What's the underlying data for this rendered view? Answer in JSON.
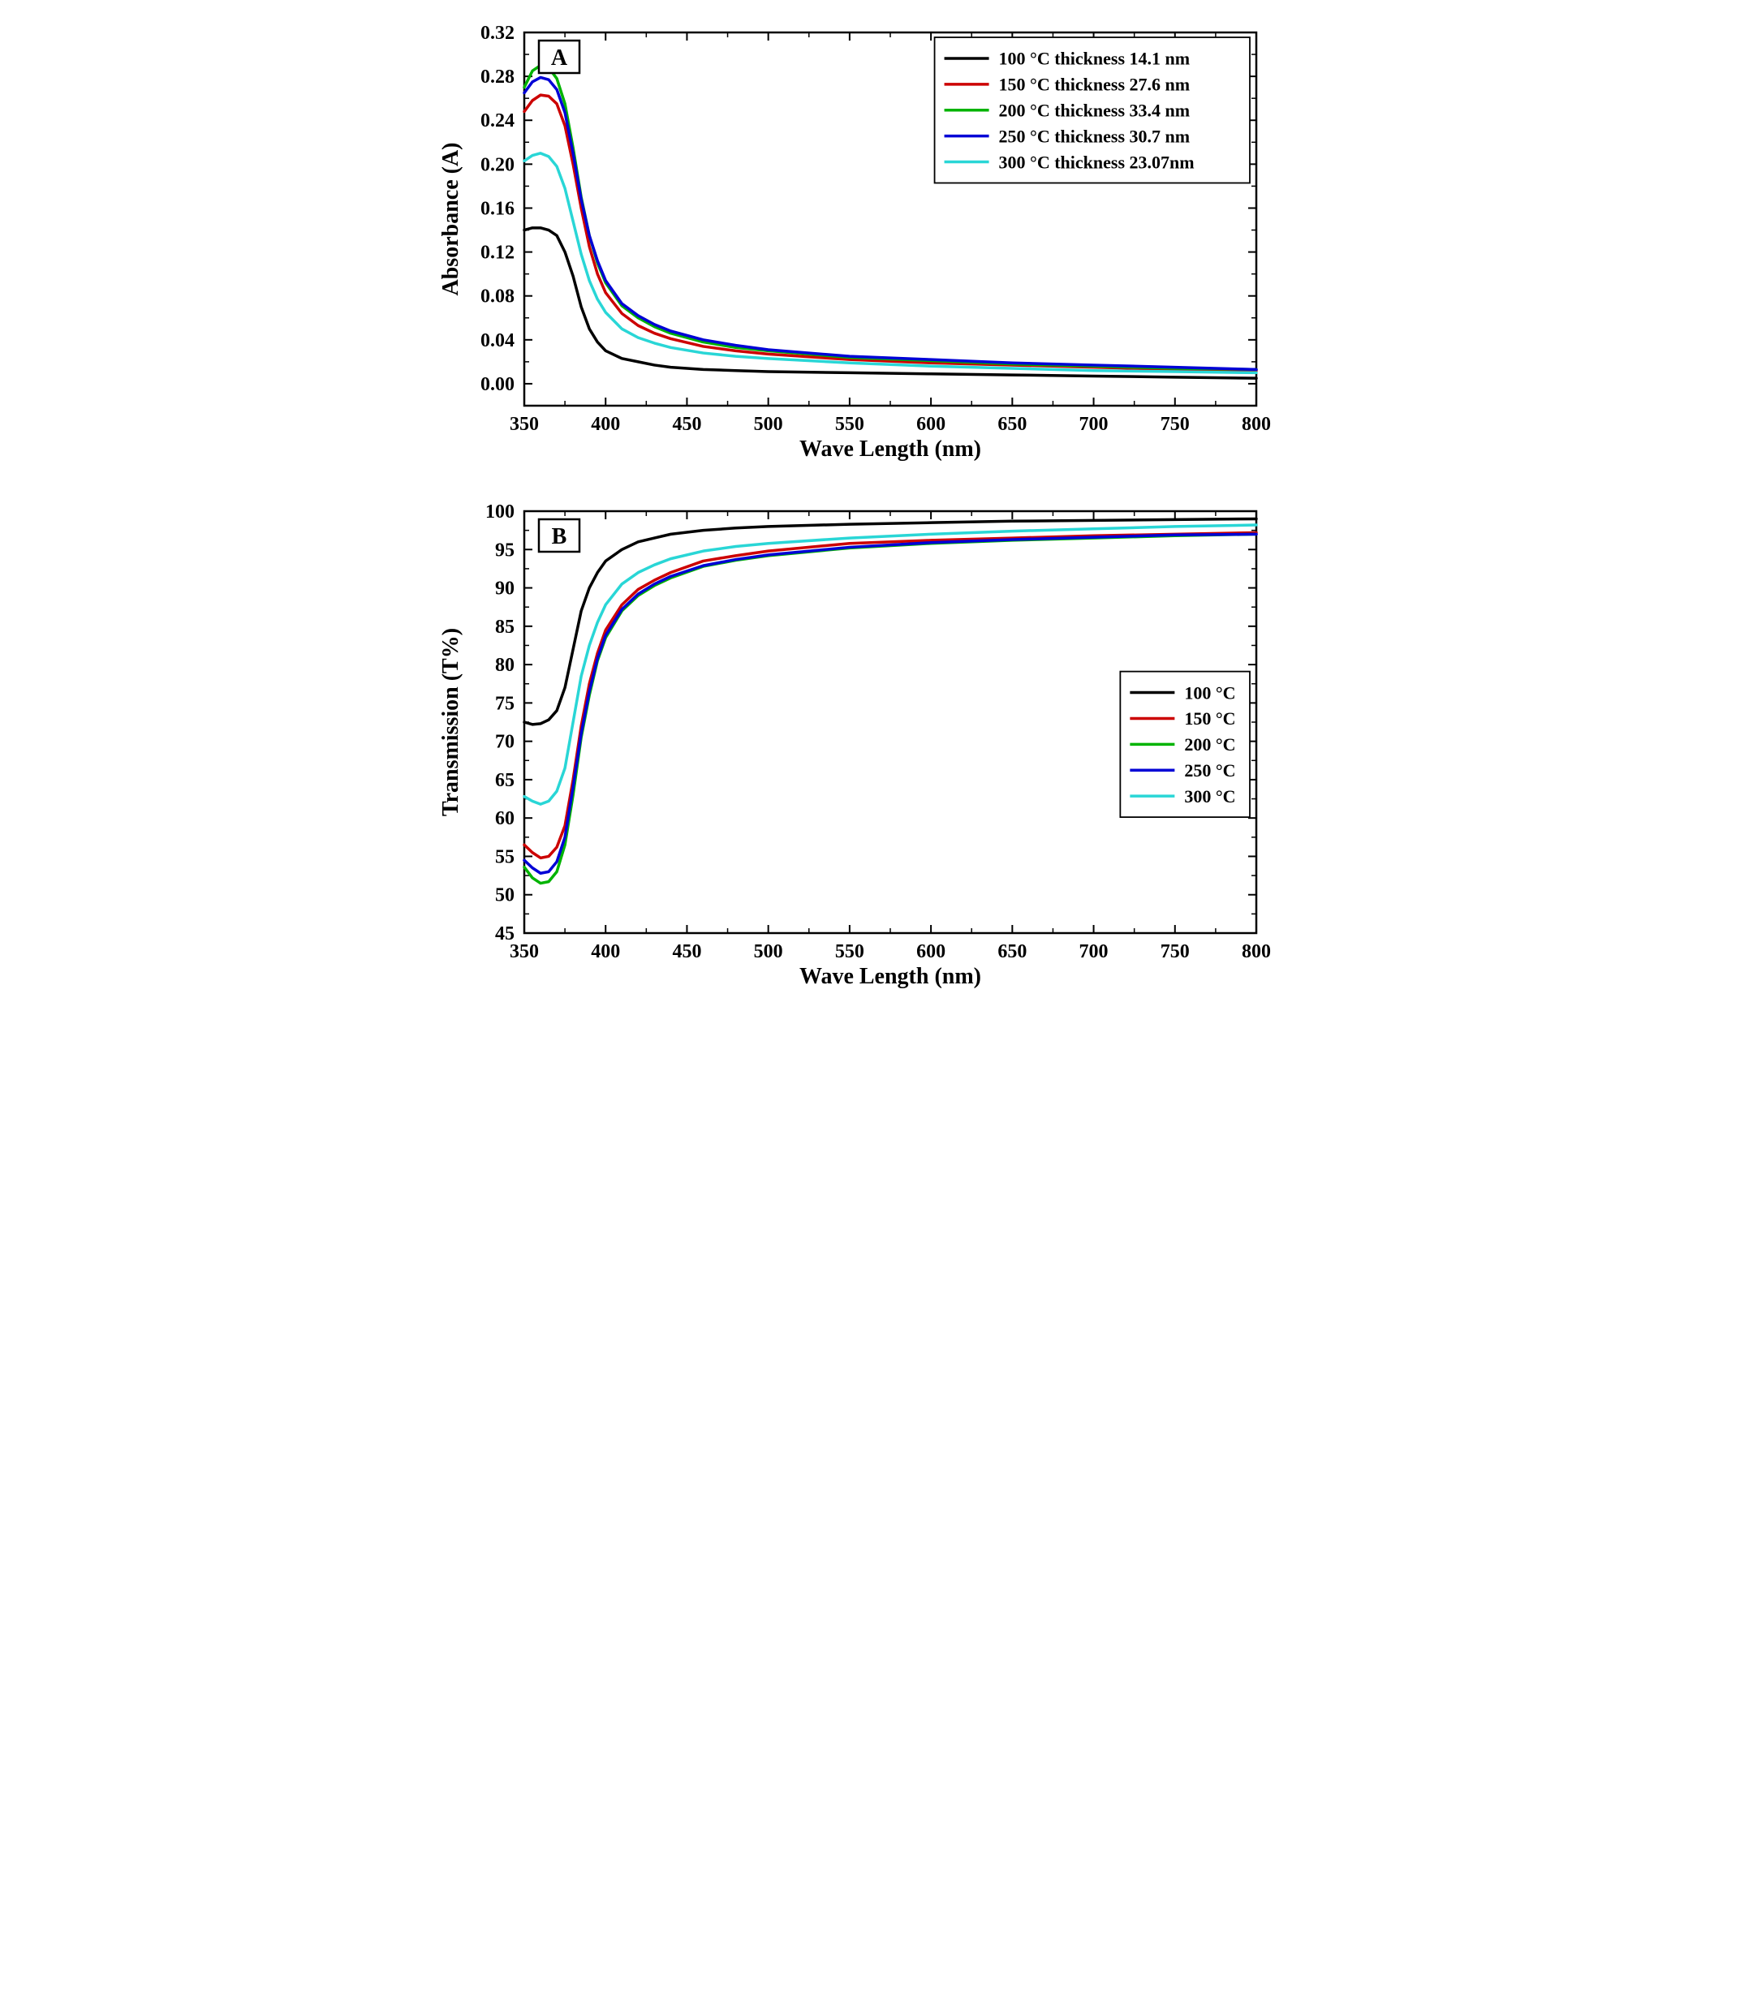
{
  "global": {
    "background_color": "#ffffff",
    "axis_color": "#000000",
    "tick_font_size": 24,
    "label_font_size": 28,
    "font_family": "Times New Roman, Times, serif",
    "line_width": 3.5
  },
  "chartA": {
    "panel_label": "A",
    "panel_box": {
      "stroke": "#000000",
      "fill": "#ffffff"
    },
    "xlabel": "Wave Length (nm)",
    "ylabel": "Absorbance (A)",
    "xlim": [
      350,
      800
    ],
    "ylim": [
      -0.02,
      0.32
    ],
    "xticks": [
      350,
      400,
      450,
      500,
      550,
      600,
      650,
      700,
      750,
      800
    ],
    "yticks": [
      0.0,
      0.04,
      0.08,
      0.12,
      0.16,
      0.2,
      0.24,
      0.28,
      0.32
    ],
    "ytick_labels": [
      "0.00",
      "0.04",
      "0.08",
      "0.12",
      "0.16",
      "0.20",
      "0.24",
      "0.28",
      "0.32"
    ],
    "legend": {
      "position": "upper-right",
      "border": "#000000",
      "font_size": 22,
      "items": [
        {
          "color": "#000000",
          "label": "100 °C  thickness  14.1 nm"
        },
        {
          "color": "#cc0000",
          "label": "150 °C  thickness  27.6 nm"
        },
        {
          "color": "#00b300",
          "label": "200 °C  thickness  33.4 nm"
        },
        {
          "color": "#0000d6",
          "label": "250 °C  thickness  30.7 nm"
        },
        {
          "color": "#29d6d6",
          "label": "300 °C  thickness  23.07nm"
        }
      ]
    },
    "series": [
      {
        "name": "100C",
        "color": "#000000",
        "x": [
          350,
          355,
          360,
          365,
          370,
          375,
          380,
          385,
          390,
          395,
          400,
          410,
          420,
          430,
          440,
          460,
          480,
          500,
          550,
          600,
          650,
          700,
          750,
          800
        ],
        "y": [
          0.14,
          0.142,
          0.142,
          0.14,
          0.135,
          0.12,
          0.098,
          0.07,
          0.05,
          0.038,
          0.03,
          0.023,
          0.02,
          0.017,
          0.015,
          0.013,
          0.012,
          0.011,
          0.01,
          0.009,
          0.008,
          0.007,
          0.006,
          0.005
        ]
      },
      {
        "name": "150C",
        "color": "#cc0000",
        "x": [
          350,
          355,
          360,
          365,
          370,
          375,
          380,
          385,
          390,
          395,
          400,
          410,
          420,
          430,
          440,
          460,
          480,
          500,
          550,
          600,
          650,
          700,
          750,
          800
        ],
        "y": [
          0.248,
          0.258,
          0.263,
          0.262,
          0.255,
          0.235,
          0.2,
          0.16,
          0.125,
          0.1,
          0.083,
          0.064,
          0.053,
          0.046,
          0.041,
          0.034,
          0.03,
          0.027,
          0.022,
          0.019,
          0.017,
          0.015,
          0.013,
          0.012
        ]
      },
      {
        "name": "200C",
        "color": "#00b300",
        "x": [
          350,
          355,
          360,
          365,
          370,
          375,
          380,
          385,
          390,
          395,
          400,
          410,
          420,
          430,
          440,
          460,
          480,
          500,
          550,
          600,
          650,
          700,
          750,
          800
        ],
        "y": [
          0.27,
          0.285,
          0.29,
          0.288,
          0.278,
          0.255,
          0.215,
          0.17,
          0.135,
          0.11,
          0.092,
          0.071,
          0.06,
          0.052,
          0.046,
          0.038,
          0.033,
          0.03,
          0.024,
          0.021,
          0.018,
          0.016,
          0.014,
          0.013
        ]
      },
      {
        "name": "250C",
        "color": "#0000d6",
        "x": [
          350,
          355,
          360,
          365,
          370,
          375,
          380,
          385,
          390,
          395,
          400,
          410,
          420,
          430,
          440,
          460,
          480,
          500,
          550,
          600,
          650,
          700,
          750,
          800
        ],
        "y": [
          0.265,
          0.275,
          0.279,
          0.277,
          0.268,
          0.247,
          0.21,
          0.168,
          0.135,
          0.112,
          0.094,
          0.073,
          0.062,
          0.054,
          0.048,
          0.04,
          0.035,
          0.031,
          0.025,
          0.022,
          0.019,
          0.017,
          0.015,
          0.013
        ]
      },
      {
        "name": "300C",
        "color": "#29d6d6",
        "x": [
          350,
          355,
          360,
          365,
          370,
          375,
          380,
          385,
          390,
          395,
          400,
          410,
          420,
          430,
          440,
          460,
          480,
          500,
          550,
          600,
          650,
          700,
          750,
          800
        ],
        "y": [
          0.203,
          0.208,
          0.21,
          0.207,
          0.198,
          0.178,
          0.148,
          0.118,
          0.094,
          0.077,
          0.065,
          0.05,
          0.042,
          0.037,
          0.033,
          0.028,
          0.025,
          0.023,
          0.019,
          0.016,
          0.014,
          0.012,
          0.011,
          0.01
        ]
      }
    ]
  },
  "chartB": {
    "panel_label": "B",
    "panel_box": {
      "stroke": "#000000",
      "fill": "#ffffff"
    },
    "xlabel": "Wave Length (nm)",
    "ylabel": "Transmission (T%)",
    "xlim": [
      350,
      800
    ],
    "ylim": [
      45,
      100
    ],
    "xticks": [
      350,
      400,
      450,
      500,
      550,
      600,
      650,
      700,
      750,
      800
    ],
    "yticks": [
      45,
      50,
      55,
      60,
      65,
      70,
      75,
      80,
      85,
      90,
      95,
      100
    ],
    "legend": {
      "position": "right-middle",
      "border": "#000000",
      "font_size": 22,
      "items": [
        {
          "color": "#000000",
          "label": "100 °C"
        },
        {
          "color": "#cc0000",
          "label": "150 °C"
        },
        {
          "color": "#00b300",
          "label": "200 °C"
        },
        {
          "color": "#0000d6",
          "label": "250 °C"
        },
        {
          "color": "#29d6d6",
          "label": "300 °C"
        }
      ]
    },
    "series": [
      {
        "name": "100C",
        "color": "#000000",
        "x": [
          350,
          355,
          360,
          365,
          370,
          375,
          380,
          385,
          390,
          395,
          400,
          410,
          420,
          430,
          440,
          460,
          480,
          500,
          550,
          600,
          650,
          700,
          750,
          800
        ],
        "y": [
          72.5,
          72.2,
          72.3,
          72.8,
          74.0,
          77.0,
          82.0,
          87.0,
          90.0,
          92.0,
          93.5,
          95.0,
          96.0,
          96.5,
          97.0,
          97.5,
          97.8,
          98.0,
          98.3,
          98.5,
          98.7,
          98.8,
          98.9,
          99.0
        ]
      },
      {
        "name": "150C",
        "color": "#cc0000",
        "x": [
          350,
          355,
          360,
          365,
          370,
          375,
          380,
          385,
          390,
          395,
          400,
          410,
          420,
          430,
          440,
          460,
          480,
          500,
          550,
          600,
          650,
          700,
          750,
          800
        ],
        "y": [
          56.5,
          55.5,
          54.8,
          55.0,
          56.2,
          59.0,
          65.0,
          72.0,
          77.5,
          81.5,
          84.5,
          87.8,
          89.8,
          91.0,
          92.0,
          93.5,
          94.2,
          94.8,
          95.8,
          96.2,
          96.5,
          96.8,
          97.0,
          97.2
        ]
      },
      {
        "name": "200C",
        "color": "#00b300",
        "x": [
          350,
          355,
          360,
          365,
          370,
          375,
          380,
          385,
          390,
          395,
          400,
          410,
          420,
          430,
          440,
          460,
          480,
          500,
          550,
          600,
          650,
          700,
          750,
          800
        ],
        "y": [
          53.6,
          52.2,
          51.5,
          51.7,
          53.0,
          56.5,
          63.0,
          70.5,
          76.0,
          80.5,
          83.5,
          87.0,
          89.0,
          90.3,
          91.3,
          92.8,
          93.6,
          94.2,
          95.2,
          95.8,
          96.2,
          96.5,
          96.8,
          97.0
        ]
      },
      {
        "name": "250C",
        "color": "#0000d6",
        "x": [
          350,
          355,
          360,
          365,
          370,
          375,
          380,
          385,
          390,
          395,
          400,
          410,
          420,
          430,
          440,
          460,
          480,
          500,
          550,
          600,
          650,
          700,
          750,
          800
        ],
        "y": [
          54.5,
          53.5,
          52.8,
          53.0,
          54.3,
          57.5,
          64.0,
          71.0,
          76.5,
          80.8,
          83.8,
          87.2,
          89.2,
          90.5,
          91.5,
          92.9,
          93.7,
          94.3,
          95.3,
          95.9,
          96.3,
          96.6,
          96.9,
          97.0
        ]
      },
      {
        "name": "300C",
        "color": "#29d6d6",
        "x": [
          350,
          355,
          360,
          365,
          370,
          375,
          380,
          385,
          390,
          395,
          400,
          410,
          420,
          430,
          440,
          460,
          480,
          500,
          550,
          600,
          650,
          700,
          750,
          800
        ],
        "y": [
          62.8,
          62.2,
          61.8,
          62.2,
          63.5,
          66.5,
          72.5,
          78.5,
          82.5,
          85.5,
          87.8,
          90.5,
          92.0,
          93.0,
          93.8,
          94.8,
          95.4,
          95.8,
          96.5,
          97.0,
          97.4,
          97.7,
          98.0,
          98.2
        ]
      }
    ]
  }
}
